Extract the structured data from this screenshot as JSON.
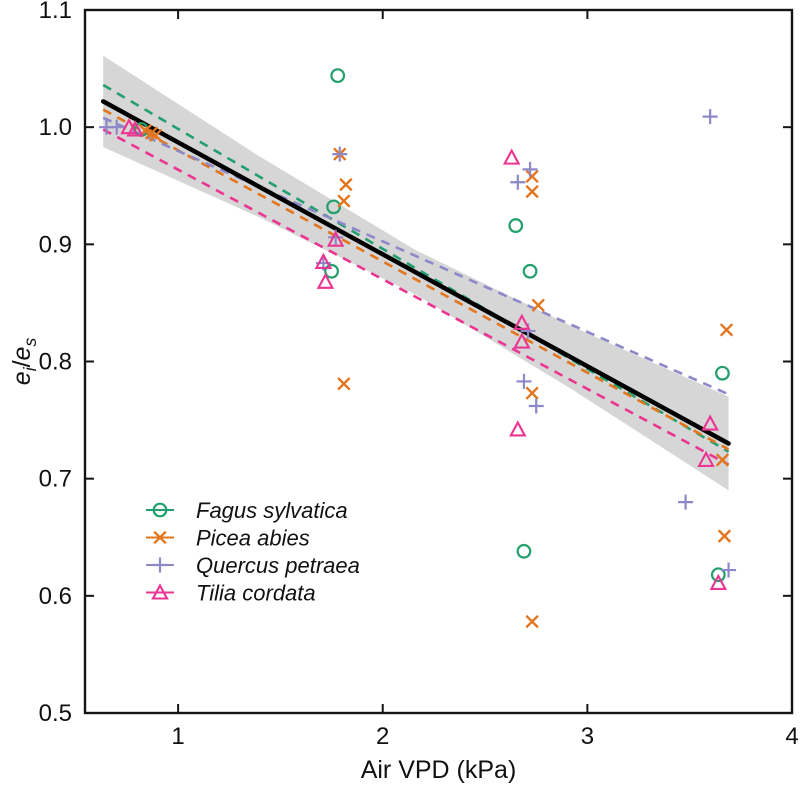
{
  "chart_data": {
    "type": "scatter",
    "title": "",
    "xlabel": "Air VPD (kPa)",
    "ylabel_parts": {
      "e1": "e",
      "sub1": "i",
      "slash": "/",
      "e2": "e",
      "sub2": "s"
    },
    "xlim": [
      0.545,
      4.0
    ],
    "ylim": [
      0.5,
      1.1
    ],
    "x_ticks": [
      1,
      2,
      3,
      4
    ],
    "y_ticks": [
      0.5,
      0.6,
      0.7,
      0.8,
      0.9,
      1.0,
      1.1
    ],
    "x_tick_labels": [
      "1",
      "2",
      "3",
      "4"
    ],
    "y_tick_labels": [
      "0.5",
      "0.6",
      "0.7",
      "0.8",
      "0.9",
      "1.0",
      "1.1"
    ],
    "grid": false,
    "legend_position": "lower-left",
    "axis_color": "#141414",
    "text_color": "#111111",
    "series": [
      {
        "name": "Fagus sylvatica",
        "marker": "circle",
        "color": "#23a06d",
        "points": [
          [
            0.82,
            0.998
          ],
          [
            1.78,
            1.044
          ],
          [
            1.76,
            0.932
          ],
          [
            1.75,
            0.877
          ],
          [
            2.65,
            0.916
          ],
          [
            2.72,
            0.877
          ],
          [
            2.69,
            0.638
          ],
          [
            3.66,
            0.79
          ],
          [
            3.64,
            0.618
          ]
        ]
      },
      {
        "name": "Picea abies",
        "marker": "x",
        "color": "#e2751d",
        "points": [
          [
            0.84,
            0.997
          ],
          [
            0.87,
            0.995
          ],
          [
            0.89,
            0.993
          ],
          [
            1.79,
            0.977
          ],
          [
            1.82,
            0.951
          ],
          [
            1.81,
            0.937
          ],
          [
            1.81,
            0.781
          ],
          [
            2.73,
            0.958
          ],
          [
            2.73,
            0.945
          ],
          [
            2.76,
            0.848
          ],
          [
            2.73,
            0.773
          ],
          [
            2.73,
            0.578
          ],
          [
            3.68,
            0.827
          ],
          [
            3.66,
            0.716
          ],
          [
            3.67,
            0.651
          ]
        ]
      },
      {
        "name": "Quercus petraea",
        "marker": "plus",
        "color": "#8d88c8",
        "points": [
          [
            0.65,
            1.0
          ],
          [
            0.7,
            1.0
          ],
          [
            1.79,
            0.977
          ],
          [
            1.77,
            0.906
          ],
          [
            1.71,
            0.884
          ],
          [
            2.72,
            0.964
          ],
          [
            2.66,
            0.953
          ],
          [
            2.71,
            0.826
          ],
          [
            2.69,
            0.783
          ],
          [
            2.75,
            0.762
          ],
          [
            3.6,
            1.009
          ],
          [
            3.48,
            0.68
          ],
          [
            3.69,
            0.622
          ]
        ]
      },
      {
        "name": "Tilia cordata",
        "marker": "triangle",
        "color": "#ec3492",
        "points": [
          [
            0.76,
            1.0
          ],
          [
            0.79,
            0.998
          ],
          [
            1.77,
            0.904
          ],
          [
            1.71,
            0.885
          ],
          [
            1.72,
            0.868
          ],
          [
            2.63,
            0.974
          ],
          [
            2.68,
            0.833
          ],
          [
            2.68,
            0.817
          ],
          [
            2.66,
            0.742
          ],
          [
            3.6,
            0.747
          ],
          [
            3.58,
            0.716
          ],
          [
            3.64,
            0.611
          ]
        ]
      }
    ],
    "regression": {
      "overall": {
        "x": [
          0.634,
          3.69
        ],
        "y": [
          1.022,
          0.73
        ],
        "color": "#000000",
        "style": "solid"
      },
      "per_species": [
        {
          "name": "Fagus sylvatica",
          "x": [
            0.634,
            3.69
          ],
          "y": [
            1.036,
            0.723
          ],
          "color": "#23a06d"
        },
        {
          "name": "Picea abies",
          "x": [
            0.634,
            3.69
          ],
          "y": [
            1.015,
            0.725
          ],
          "color": "#e2751d"
        },
        {
          "name": "Tilia cordata",
          "x": [
            0.634,
            3.69
          ],
          "y": [
            0.998,
            0.712
          ],
          "color": "#ec3492"
        },
        {
          "name": "Quercus petraea",
          "x": [
            0.634,
            3.69
          ],
          "y": [
            1.008,
            0.772
          ],
          "color": "#8d88c8"
        }
      ],
      "confidence_band": {
        "x": [
          0.634,
          1.4,
          2.16,
          2.93,
          3.69
        ],
        "half_width": [
          0.039,
          0.026,
          0.019,
          0.027,
          0.04
        ],
        "color": "#d6d6d6"
      }
    }
  }
}
